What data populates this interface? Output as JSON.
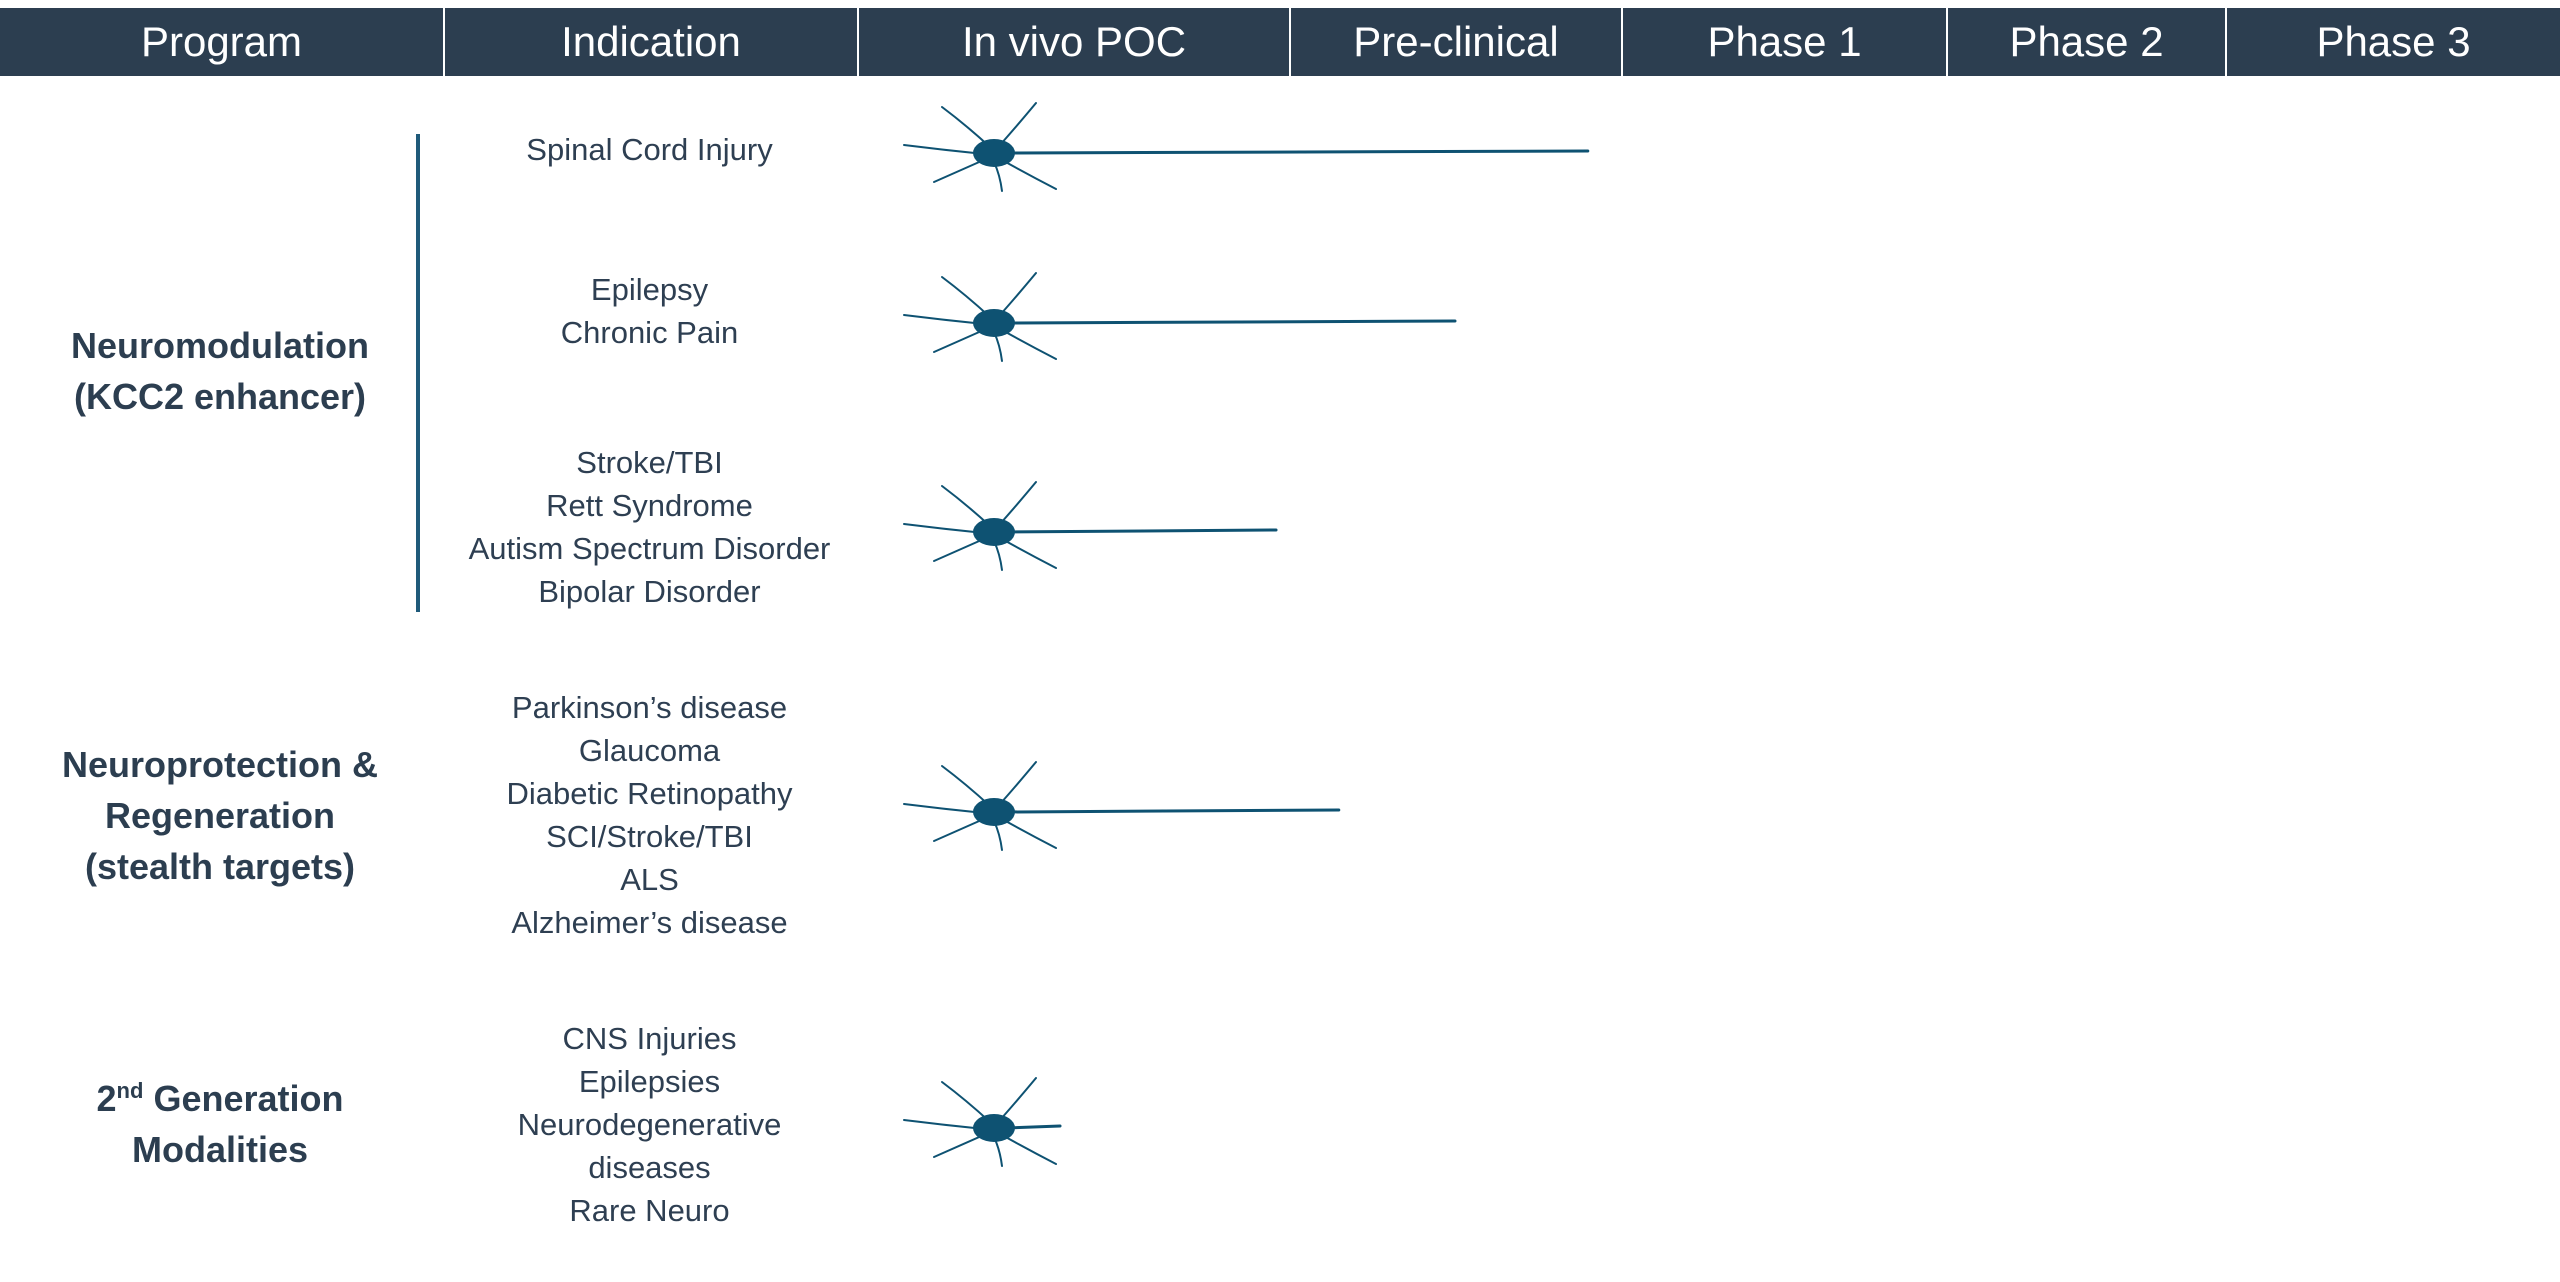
{
  "header": {
    "columns": [
      "Program",
      "Indication",
      "In vivo POC",
      "Pre-clinical",
      "Phase 1",
      "Phase 2",
      "Phase 3"
    ]
  },
  "programs": [
    {
      "lines": [
        "Neuromodulation",
        "(KCC2 enhancer)"
      ],
      "sup": ""
    },
    {
      "lines": [
        "Neuroprotection &",
        "Regeneration",
        "(stealth targets)"
      ],
      "sup": ""
    },
    {
      "prefix": "2",
      "sup": "nd",
      "lines": [
        "Generation",
        "Modalities"
      ]
    }
  ],
  "indications": [
    {
      "lines": [
        "Spinal Cord Injury"
      ]
    },
    {
      "lines": [
        "Epilepsy",
        "Chronic Pain"
      ]
    },
    {
      "lines": [
        "Stroke/TBI",
        "Rett Syndrome",
        "Autism Spectrum Disorder",
        "Bipolar Disorder"
      ]
    },
    {
      "lines": [
        "Parkinson’s disease",
        "Glaucoma",
        "Diabetic Retinopathy",
        "SCI/Stroke/TBI",
        "ALS",
        "Alzheimer’s disease"
      ]
    },
    {
      "lines": [
        "CNS Injuries",
        "Epilepsies",
        "Neurodegenerative",
        "diseases",
        "Rare Neuro"
      ]
    }
  ],
  "pipeline": {
    "stages": [
      "In vivo POC",
      "Pre-clinical",
      "Phase 1",
      "Phase 2",
      "Phase 3"
    ],
    "progress": [
      {
        "indication": "Spinal Cord Injury",
        "stage_reached": 1.9
      },
      {
        "indication": "Epilepsy / Chronic Pain",
        "stage_reached": 1.5
      },
      {
        "indication": "Stroke/TBI group",
        "stage_reached": 0.97
      },
      {
        "indication": "Neuroprotection group",
        "stage_reached": 1.15
      },
      {
        "indication": "2nd Generation group",
        "stage_reached": 0.47
      }
    ]
  },
  "colors": {
    "header_bg": "#2c3e50",
    "header_text": "#ffffff",
    "neuron": "#0e5272",
    "text": "#2e3f52"
  }
}
